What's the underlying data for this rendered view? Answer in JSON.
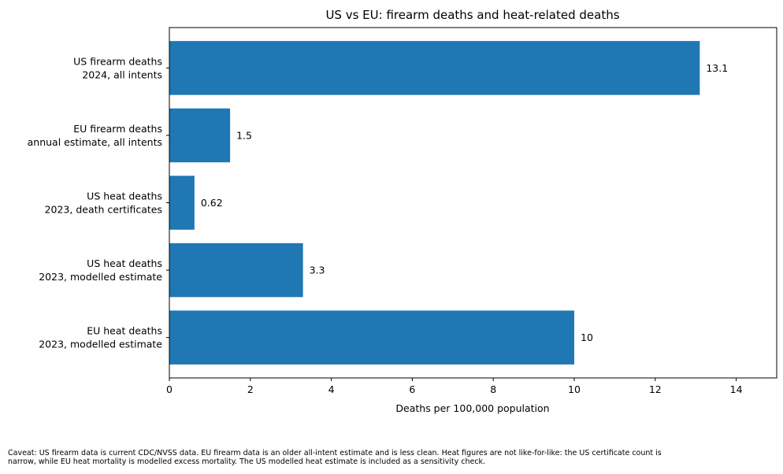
{
  "chart_data": {
    "type": "bar",
    "orientation": "horizontal",
    "title": "US vs EU: firearm deaths and heat-related deaths",
    "xlabel": "Deaths per 100,000 population",
    "ylabel": "",
    "xlim": [
      0,
      15
    ],
    "xticks": [
      0,
      2,
      4,
      6,
      8,
      10,
      12,
      14
    ],
    "grid": false,
    "bar_color": "#1f77b4",
    "categories": [
      [
        "US firearm deaths",
        "2024, all intents"
      ],
      [
        "EU firearm deaths",
        "annual estimate, all intents"
      ],
      [
        "US heat deaths",
        "2023, death certificates"
      ],
      [
        "US heat deaths",
        "2023, modelled estimate"
      ],
      [
        "EU heat deaths",
        "2023, modelled estimate"
      ]
    ],
    "values": [
      13.1,
      1.5,
      0.62,
      3.3,
      10
    ],
    "value_labels": [
      "13.1",
      "1.5",
      "0.62",
      "3.3",
      "10"
    ]
  },
  "caveat": {
    "line1": "Caveat: US firearm data is current CDC/NVSS data. EU firearm data is an older all-intent estimate and is less clean. Heat figures are not like-for-like: the US certificate count is",
    "line2": "narrow, while EU heat mortality is modelled excess mortality. The US modelled heat estimate is included as a sensitivity check."
  }
}
